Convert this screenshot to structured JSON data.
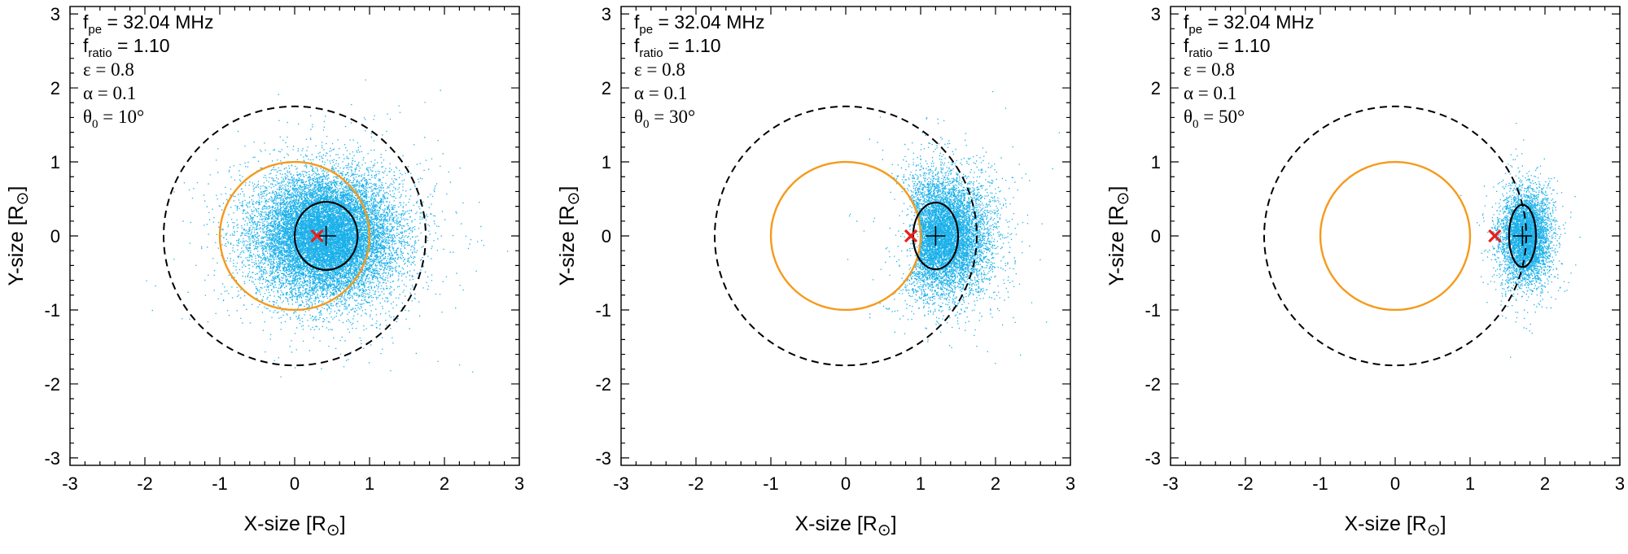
{
  "figure": {
    "panel_count": 3
  },
  "chart_data": [
    {
      "type": "scatter",
      "xlabel": {
        "main": "X-size [R",
        "close": "]"
      },
      "ylabel": {
        "main": "Y-size [R",
        "close": "]"
      },
      "sun_symbol": "⊙",
      "xlim": [
        -3,
        3
      ],
      "ylim": [
        -3.1,
        3.1
      ],
      "xticks": [
        -3,
        -2,
        -1,
        0,
        1,
        2,
        3
      ],
      "yticks": [
        -3,
        -2,
        -1,
        0,
        1,
        2,
        3
      ],
      "annotations": {
        "fpe": {
          "sym": "f",
          "sub": "pe",
          "value": " = 32.04 MHz"
        },
        "fratio": {
          "sym": "f",
          "sub": "ratio",
          "value": " = 1.10"
        },
        "eps": {
          "text": "ε = 0.8"
        },
        "alpha": {
          "text": "α = 0.1"
        },
        "theta": {
          "sym": "θ",
          "sub": "0",
          "value": " = 10°"
        }
      },
      "scatter": {
        "color": "#1ab0ea",
        "center": [
          0.42,
          0.0
        ],
        "spread": [
          0.45,
          0.4
        ],
        "n_points": 16000,
        "clip_to_disk": false
      },
      "photosphere": {
        "center": [
          0,
          0
        ],
        "radius": 1.0,
        "color": "#f59a1b"
      },
      "dashed_circle": {
        "center": [
          0,
          0
        ],
        "radius": 1.75,
        "color": "#000000"
      },
      "fit_ellipse": {
        "center": [
          0.42,
          0.0
        ],
        "rx": 0.42,
        "ry": 0.46,
        "color": "#000000"
      },
      "centroid_plus": [
        0.42,
        0.0
      ],
      "source_x": {
        "pos": [
          0.3,
          0.0
        ],
        "color": "#e8201a"
      }
    },
    {
      "type": "scatter",
      "xlabel": {
        "main": "X-size [R",
        "close": "]"
      },
      "ylabel": {
        "main": "Y-size [R",
        "close": "]"
      },
      "sun_symbol": "⊙",
      "xlim": [
        -3,
        3
      ],
      "ylim": [
        -3.1,
        3.1
      ],
      "xticks": [
        -3,
        -2,
        -1,
        0,
        1,
        2,
        3
      ],
      "yticks": [
        -3,
        -2,
        -1,
        0,
        1,
        2,
        3
      ],
      "annotations": {
        "fpe": {
          "sym": "f",
          "sub": "pe",
          "value": " = 32.04 MHz"
        },
        "fratio": {
          "sym": "f",
          "sub": "ratio",
          "value": " = 1.10"
        },
        "eps": {
          "text": "ε = 0.8"
        },
        "alpha": {
          "text": "α = 0.1"
        },
        "theta": {
          "sym": "θ",
          "sub": "0",
          "value": " = 30°"
        }
      },
      "scatter": {
        "color": "#1ab0ea",
        "center": [
          1.28,
          0.0
        ],
        "spread": [
          0.3,
          0.38
        ],
        "n_points": 9000,
        "clip_to_disk": true
      },
      "photosphere": {
        "center": [
          0,
          0
        ],
        "radius": 1.0,
        "color": "#f59a1b"
      },
      "dashed_circle": {
        "center": [
          0,
          0
        ],
        "radius": 1.75,
        "color": "#000000"
      },
      "fit_ellipse": {
        "center": [
          1.2,
          0.0
        ],
        "rx": 0.3,
        "ry": 0.45,
        "color": "#000000"
      },
      "centroid_plus": [
        1.2,
        0.0
      ],
      "source_x": {
        "pos": [
          0.87,
          0.0
        ],
        "color": "#e8201a"
      }
    },
    {
      "type": "scatter",
      "xlabel": {
        "main": "X-size [R",
        "close": "]"
      },
      "ylabel": {
        "main": "Y-size [R",
        "close": "]"
      },
      "sun_symbol": "⊙",
      "xlim": [
        -3,
        3
      ],
      "ylim": [
        -3.1,
        3.1
      ],
      "xticks": [
        -3,
        -2,
        -1,
        0,
        1,
        2,
        3
      ],
      "yticks": [
        -3,
        -2,
        -1,
        0,
        1,
        2,
        3
      ],
      "annotations": {
        "fpe": {
          "sym": "f",
          "sub": "pe",
          "value": " = 32.04 MHz"
        },
        "fratio": {
          "sym": "f",
          "sub": "ratio",
          "value": " = 1.10"
        },
        "eps": {
          "text": "ε = 0.8"
        },
        "alpha": {
          "text": "α = 0.1"
        },
        "theta": {
          "sym": "θ",
          "sub": "0",
          "value": " = 50°"
        }
      },
      "scatter": {
        "color": "#1ab0ea",
        "center": [
          1.74,
          0.0
        ],
        "spread": [
          0.16,
          0.3
        ],
        "n_points": 5000,
        "clip_to_disk": false
      },
      "photosphere": {
        "center": [
          0,
          0
        ],
        "radius": 1.0,
        "color": "#f59a1b"
      },
      "dashed_circle": {
        "center": [
          0,
          0
        ],
        "radius": 1.75,
        "color": "#000000"
      },
      "fit_ellipse": {
        "center": [
          1.7,
          0.0
        ],
        "rx": 0.18,
        "ry": 0.42,
        "color": "#000000"
      },
      "centroid_plus": [
        1.7,
        0.0
      ],
      "source_x": {
        "pos": [
          1.33,
          0.0
        ],
        "color": "#e8201a"
      }
    }
  ]
}
